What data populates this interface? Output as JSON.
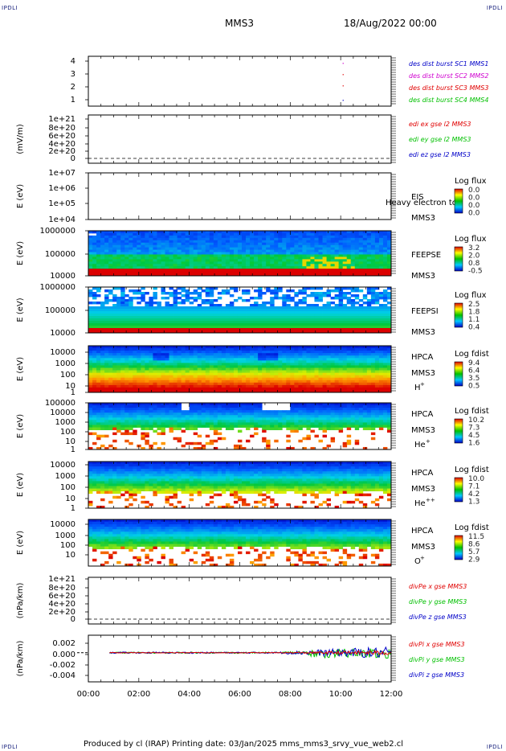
{
  "corner_mark": "IPDLI",
  "header": {
    "title": "MMS3",
    "datetime": "18/Aug/2022 00:00"
  },
  "footer": {
    "text": "Produced by cl (IRAP)   Printing date: 03/Jan/2025   mms_mms3_srvy_vue_web2.cl"
  },
  "x_axis": {
    "ticks": [
      "00:00",
      "02:00",
      "04:00",
      "06:00",
      "08:00",
      "10:00",
      "12:00"
    ]
  },
  "colors": {
    "red": "#e00000",
    "green": "#00c000",
    "blue": "#0000c8",
    "magenta": "#d000d0"
  },
  "chart_data": [
    {
      "type": "scatter",
      "ylabel": "",
      "yticks": [
        "4",
        "3",
        "2",
        "1"
      ],
      "legend": [
        {
          "text": "des dist burst SC1 MMS1",
          "color": "#0000c8"
        },
        {
          "text": "des dist burst SC2 MMS2",
          "color": "#d000d0"
        },
        {
          "text": "des dist burst SC3 MMS3",
          "color": "#e00000"
        },
        {
          "text": "des dist burst SC4 MMS4",
          "color": "#00c000"
        }
      ]
    },
    {
      "type": "line",
      "ylabel": "(mV/m)",
      "yticks": [
        "1e+21",
        "8e+20",
        "6e+20",
        "4e+20",
        "2e+20",
        "0"
      ],
      "legend": [
        {
          "text": "edi ex gse l2 MMS3",
          "color": "#e00000"
        },
        {
          "text": "edi ey gse l2 MMS3",
          "color": "#00c000"
        },
        {
          "text": "edi ez gse l2 MMS3",
          "color": "#0000c8"
        }
      ]
    },
    {
      "type": "heatmap",
      "ylabel": "E (eV)",
      "yticks": [
        "1e+07",
        "1e+06",
        "1e+05",
        "1e+04"
      ],
      "instrument": [
        "EIS",
        "MMS3"
      ],
      "overlay": "Heavy electron to",
      "colorbar": {
        "title": "Log flux",
        "ticks": [
          "0.0",
          "0.0",
          "0.0",
          "0.0"
        ]
      }
    },
    {
      "type": "heatmap",
      "ylabel": "E (eV)",
      "yticks": [
        "1000000",
        "100000",
        "10000"
      ],
      "instrument": [
        "FEEPSE",
        "MMS3"
      ],
      "colorbar": {
        "title": "Log flux",
        "ticks": [
          "3.2",
          "2.0",
          "0.8",
          "-0.5"
        ]
      }
    },
    {
      "type": "heatmap",
      "ylabel": "E (eV)",
      "yticks": [
        "1000000",
        "100000",
        "10000"
      ],
      "instrument": [
        "FEEPSI",
        "MMS3"
      ],
      "colorbar": {
        "title": "Log flux",
        "ticks": [
          "2.5",
          "1.8",
          "1.1",
          "0.4"
        ]
      }
    },
    {
      "type": "heatmap",
      "ylabel": "E (eV)",
      "yticks": [
        "10000",
        "1000",
        "100",
        "10",
        "1"
      ],
      "instrument": [
        "HPCA",
        "MMS3"
      ],
      "species": "H",
      "charge": "+",
      "colorbar": {
        "title": "Log fdist",
        "ticks": [
          "9.4",
          "6.4",
          "3.5",
          "0.5"
        ]
      }
    },
    {
      "type": "heatmap",
      "ylabel": "E (eV)",
      "yticks": [
        "100000",
        "10000",
        "1000",
        "100",
        "10",
        "1"
      ],
      "instrument": [
        "HPCA",
        "MMS3"
      ],
      "species": "He",
      "charge": "+",
      "colorbar": {
        "title": "Log fdist",
        "ticks": [
          "10.2",
          "7.3",
          "4.5",
          "1.6"
        ]
      }
    },
    {
      "type": "heatmap",
      "ylabel": "E (eV)",
      "yticks": [
        "10000",
        "1000",
        "100",
        "10",
        "1"
      ],
      "instrument": [
        "HPCA",
        "MMS3"
      ],
      "species": "He",
      "charge": "++",
      "colorbar": {
        "title": "Log fdist",
        "ticks": [
          "10.0",
          "7.1",
          "4.2",
          "1.3"
        ]
      }
    },
    {
      "type": "heatmap",
      "ylabel": "E (eV)",
      "yticks": [
        "10000",
        "1000",
        "100",
        "10"
      ],
      "instrument": [
        "HPCA",
        "MMS3"
      ],
      "species": "O",
      "charge": "+",
      "colorbar": {
        "title": "Log fdist",
        "ticks": [
          "11.5",
          "8.6",
          "5.7",
          "2.9"
        ]
      }
    },
    {
      "type": "line",
      "ylabel": "(nPa/km)",
      "yticks": [
        "1e+21",
        "8e+20",
        "6e+20",
        "4e+20",
        "2e+20",
        "0"
      ],
      "legend": [
        {
          "text": "divPe x gse MMS3",
          "color": "#e00000"
        },
        {
          "text": "divPe y gse MMS3",
          "color": "#00c000"
        },
        {
          "text": "divPe z gse MMS3",
          "color": "#0000c8"
        }
      ]
    },
    {
      "type": "line",
      "ylabel": "(nPa/km)",
      "yticks": [
        "0.002",
        "0.000",
        "-0.002",
        "-0.004"
      ],
      "ylim": [
        -0.005,
        0.003
      ],
      "legend": [
        {
          "text": "divPi x gse MMS3",
          "color": "#e00000"
        },
        {
          "text": "divPi y gse MMS3",
          "color": "#00c000"
        },
        {
          "text": "divPi z gse MMS3",
          "color": "#0000c8"
        }
      ]
    }
  ]
}
